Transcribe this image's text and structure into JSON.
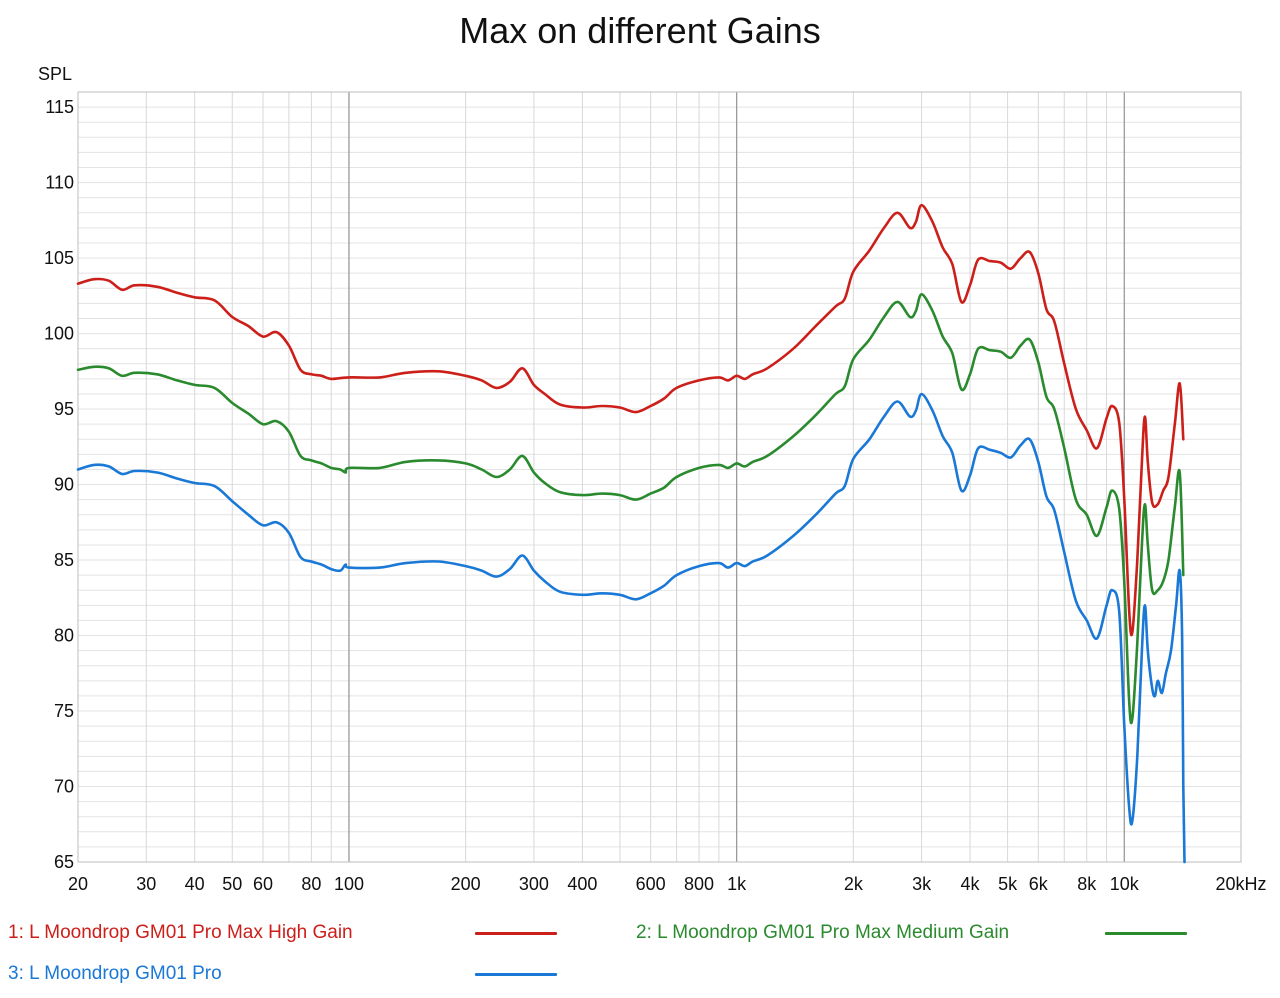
{
  "chart_data": {
    "type": "line",
    "title": "Max on different Gains",
    "ylabel": "SPL",
    "xlabel": "",
    "xscale": "log",
    "xlim": [
      20,
      20000
    ],
    "ylim": [
      65,
      116
    ],
    "yticks": [
      {
        "value": 65,
        "label": "65"
      },
      {
        "value": 70,
        "label": "70"
      },
      {
        "value": 75,
        "label": "75"
      },
      {
        "value": 80,
        "label": "80"
      },
      {
        "value": 85,
        "label": "85"
      },
      {
        "value": 90,
        "label": "90"
      },
      {
        "value": 95,
        "label": "95"
      },
      {
        "value": 100,
        "label": "100"
      },
      {
        "value": 105,
        "label": "105"
      },
      {
        "value": 110,
        "label": "110"
      },
      {
        "value": 115,
        "label": "115"
      }
    ],
    "xticks": [
      {
        "value": 20,
        "label": "20"
      },
      {
        "value": 30,
        "label": "30"
      },
      {
        "value": 40,
        "label": "40"
      },
      {
        "value": 50,
        "label": "50"
      },
      {
        "value": 60,
        "label": "60"
      },
      {
        "value": 80,
        "label": "80"
      },
      {
        "value": 100,
        "label": "100"
      },
      {
        "value": 200,
        "label": "200"
      },
      {
        "value": 300,
        "label": "300"
      },
      {
        "value": 400,
        "label": "400"
      },
      {
        "value": 600,
        "label": "600"
      },
      {
        "value": 800,
        "label": "800"
      },
      {
        "value": 1000,
        "label": "1k"
      },
      {
        "value": 2000,
        "label": "2k"
      },
      {
        "value": 3000,
        "label": "3k"
      },
      {
        "value": 4000,
        "label": "4k"
      },
      {
        "value": 5000,
        "label": "5k"
      },
      {
        "value": 6000,
        "label": "6k"
      },
      {
        "value": 8000,
        "label": "8k"
      },
      {
        "value": 10000,
        "label": "10k"
      },
      {
        "value": 20000,
        "label": "20kHz"
      }
    ],
    "grid": true,
    "legend": "bottom",
    "series": [
      {
        "name": "1: L Moondrop GM01 Pro Max High Gain",
        "color": "#cc1f1a",
        "points": [
          [
            20,
            103.3
          ],
          [
            22,
            103.6
          ],
          [
            24,
            103.5
          ],
          [
            26,
            102.9
          ],
          [
            28,
            103.2
          ],
          [
            32,
            103.1
          ],
          [
            36,
            102.7
          ],
          [
            40,
            102.4
          ],
          [
            45,
            102.2
          ],
          [
            50,
            101.1
          ],
          [
            55,
            100.5
          ],
          [
            60,
            99.8
          ],
          [
            65,
            100.1
          ],
          [
            70,
            99.2
          ],
          [
            75,
            97.6
          ],
          [
            80,
            97.3
          ],
          [
            85,
            97.2
          ],
          [
            90,
            97.0
          ],
          [
            100,
            97.1
          ],
          [
            120,
            97.1
          ],
          [
            140,
            97.4
          ],
          [
            170,
            97.5
          ],
          [
            200,
            97.2
          ],
          [
            220,
            96.9
          ],
          [
            240,
            96.4
          ],
          [
            260,
            96.8
          ],
          [
            280,
            97.7
          ],
          [
            300,
            96.6
          ],
          [
            320,
            96.0
          ],
          [
            350,
            95.3
          ],
          [
            400,
            95.1
          ],
          [
            450,
            95.2
          ],
          [
            500,
            95.1
          ],
          [
            550,
            94.8
          ],
          [
            600,
            95.2
          ],
          [
            650,
            95.7
          ],
          [
            700,
            96.4
          ],
          [
            800,
            96.9
          ],
          [
            900,
            97.1
          ],
          [
            950,
            96.9
          ],
          [
            1000,
            97.2
          ],
          [
            1050,
            97.0
          ],
          [
            1100,
            97.3
          ],
          [
            1200,
            97.7
          ],
          [
            1400,
            99.0
          ],
          [
            1600,
            100.5
          ],
          [
            1800,
            101.8
          ],
          [
            1900,
            102.3
          ],
          [
            2000,
            104.1
          ],
          [
            2200,
            105.5
          ],
          [
            2400,
            107.0
          ],
          [
            2600,
            108.0
          ],
          [
            2800,
            107.0
          ],
          [
            2900,
            107.4
          ],
          [
            3000,
            108.5
          ],
          [
            3200,
            107.4
          ],
          [
            3400,
            105.7
          ],
          [
            3600,
            104.6
          ],
          [
            3800,
            102.1
          ],
          [
            4000,
            103.2
          ],
          [
            4200,
            104.9
          ],
          [
            4500,
            104.8
          ],
          [
            4800,
            104.7
          ],
          [
            5100,
            104.3
          ],
          [
            5400,
            105.0
          ],
          [
            5700,
            105.4
          ],
          [
            6000,
            104.0
          ],
          [
            6300,
            101.6
          ],
          [
            6600,
            100.8
          ],
          [
            7000,
            98.0
          ],
          [
            7500,
            95.0
          ],
          [
            8000,
            93.6
          ],
          [
            8500,
            92.4
          ],
          [
            9000,
            94.4
          ],
          [
            9300,
            95.2
          ],
          [
            9700,
            94.1
          ],
          [
            10000,
            89.0
          ],
          [
            10300,
            81.5
          ],
          [
            10500,
            80.3
          ],
          [
            10800,
            85.0
          ],
          [
            11100,
            91.5
          ],
          [
            11300,
            94.5
          ],
          [
            11500,
            91.5
          ],
          [
            11800,
            88.8
          ],
          [
            12200,
            88.7
          ],
          [
            12600,
            89.6
          ],
          [
            13000,
            90.5
          ],
          [
            13500,
            94.0
          ],
          [
            13900,
            96.7
          ],
          [
            14200,
            93.0
          ]
        ]
      },
      {
        "name": "2: L Moondrop GM01 Pro Max Medium Gain",
        "color": "#2a8a2e",
        "points": [
          [
            20,
            97.6
          ],
          [
            22,
            97.8
          ],
          [
            24,
            97.7
          ],
          [
            26,
            97.2
          ],
          [
            28,
            97.4
          ],
          [
            32,
            97.3
          ],
          [
            36,
            96.9
          ],
          [
            40,
            96.6
          ],
          [
            45,
            96.4
          ],
          [
            50,
            95.4
          ],
          [
            55,
            94.7
          ],
          [
            60,
            94.0
          ],
          [
            65,
            94.2
          ],
          [
            70,
            93.5
          ],
          [
            75,
            91.9
          ],
          [
            80,
            91.6
          ],
          [
            85,
            91.4
          ],
          [
            90,
            91.1
          ],
          [
            95,
            91.0
          ],
          [
            98,
            90.8
          ],
          [
            100,
            91.1
          ],
          [
            120,
            91.1
          ],
          [
            140,
            91.5
          ],
          [
            170,
            91.6
          ],
          [
            200,
            91.4
          ],
          [
            220,
            91.0
          ],
          [
            240,
            90.5
          ],
          [
            260,
            91.0
          ],
          [
            280,
            91.9
          ],
          [
            300,
            90.8
          ],
          [
            320,
            90.1
          ],
          [
            350,
            89.5
          ],
          [
            400,
            89.3
          ],
          [
            450,
            89.4
          ],
          [
            500,
            89.3
          ],
          [
            550,
            89.0
          ],
          [
            600,
            89.4
          ],
          [
            650,
            89.8
          ],
          [
            700,
            90.5
          ],
          [
            800,
            91.1
          ],
          [
            900,
            91.3
          ],
          [
            950,
            91.1
          ],
          [
            1000,
            91.4
          ],
          [
            1050,
            91.2
          ],
          [
            1100,
            91.5
          ],
          [
            1200,
            91.9
          ],
          [
            1400,
            93.2
          ],
          [
            1600,
            94.6
          ],
          [
            1800,
            96.0
          ],
          [
            1900,
            96.5
          ],
          [
            2000,
            98.3
          ],
          [
            2200,
            99.6
          ],
          [
            2400,
            101.1
          ],
          [
            2600,
            102.1
          ],
          [
            2800,
            101.1
          ],
          [
            2900,
            101.5
          ],
          [
            3000,
            102.6
          ],
          [
            3200,
            101.5
          ],
          [
            3400,
            99.8
          ],
          [
            3600,
            98.7
          ],
          [
            3800,
            96.3
          ],
          [
            4000,
            97.3
          ],
          [
            4200,
            99.0
          ],
          [
            4500,
            98.9
          ],
          [
            4800,
            98.8
          ],
          [
            5100,
            98.4
          ],
          [
            5400,
            99.2
          ],
          [
            5700,
            99.6
          ],
          [
            6000,
            98.1
          ],
          [
            6300,
            95.8
          ],
          [
            6600,
            95.0
          ],
          [
            7000,
            92.4
          ],
          [
            7500,
            89.0
          ],
          [
            8000,
            88.0
          ],
          [
            8500,
            86.6
          ],
          [
            9000,
            88.5
          ],
          [
            9300,
            89.6
          ],
          [
            9700,
            88.4
          ],
          [
            10000,
            83.5
          ],
          [
            10300,
            75.5
          ],
          [
            10500,
            74.6
          ],
          [
            10800,
            79.5
          ],
          [
            11100,
            86.0
          ],
          [
            11300,
            88.7
          ],
          [
            11500,
            86.0
          ],
          [
            11800,
            83.0
          ],
          [
            12200,
            83.0
          ],
          [
            12600,
            83.6
          ],
          [
            13000,
            85.0
          ],
          [
            13500,
            88.5
          ],
          [
            13900,
            90.8
          ],
          [
            14200,
            84.0
          ]
        ]
      },
      {
        "name": "3: L Moondrop GM01 Pro",
        "color": "#1a78d6",
        "points": [
          [
            20,
            91.0
          ],
          [
            22,
            91.3
          ],
          [
            24,
            91.2
          ],
          [
            26,
            90.7
          ],
          [
            28,
            90.9
          ],
          [
            32,
            90.8
          ],
          [
            36,
            90.4
          ],
          [
            40,
            90.1
          ],
          [
            45,
            89.9
          ],
          [
            50,
            88.9
          ],
          [
            55,
            88.0
          ],
          [
            60,
            87.3
          ],
          [
            65,
            87.5
          ],
          [
            70,
            86.8
          ],
          [
            75,
            85.2
          ],
          [
            80,
            84.9
          ],
          [
            85,
            84.7
          ],
          [
            90,
            84.4
          ],
          [
            95,
            84.3
          ],
          [
            98,
            84.7
          ],
          [
            100,
            84.5
          ],
          [
            120,
            84.5
          ],
          [
            140,
            84.8
          ],
          [
            170,
            84.9
          ],
          [
            200,
            84.6
          ],
          [
            220,
            84.3
          ],
          [
            240,
            83.9
          ],
          [
            260,
            84.4
          ],
          [
            280,
            85.3
          ],
          [
            300,
            84.3
          ],
          [
            320,
            83.6
          ],
          [
            350,
            82.9
          ],
          [
            400,
            82.7
          ],
          [
            450,
            82.8
          ],
          [
            500,
            82.7
          ],
          [
            550,
            82.4
          ],
          [
            600,
            82.8
          ],
          [
            650,
            83.3
          ],
          [
            700,
            84.0
          ],
          [
            800,
            84.6
          ],
          [
            900,
            84.8
          ],
          [
            950,
            84.5
          ],
          [
            1000,
            84.8
          ],
          [
            1050,
            84.6
          ],
          [
            1100,
            84.9
          ],
          [
            1200,
            85.3
          ],
          [
            1400,
            86.6
          ],
          [
            1600,
            88.0
          ],
          [
            1800,
            89.4
          ],
          [
            1900,
            89.9
          ],
          [
            2000,
            91.7
          ],
          [
            2200,
            93.0
          ],
          [
            2400,
            94.5
          ],
          [
            2600,
            95.5
          ],
          [
            2800,
            94.5
          ],
          [
            2900,
            94.9
          ],
          [
            3000,
            96.0
          ],
          [
            3200,
            94.9
          ],
          [
            3400,
            93.2
          ],
          [
            3600,
            92.1
          ],
          [
            3800,
            89.6
          ],
          [
            4000,
            90.6
          ],
          [
            4200,
            92.4
          ],
          [
            4500,
            92.3
          ],
          [
            4800,
            92.1
          ],
          [
            5100,
            91.8
          ],
          [
            5400,
            92.6
          ],
          [
            5700,
            93.0
          ],
          [
            6000,
            91.5
          ],
          [
            6300,
            89.2
          ],
          [
            6600,
            88.3
          ],
          [
            7000,
            85.5
          ],
          [
            7500,
            82.3
          ],
          [
            8000,
            81.0
          ],
          [
            8500,
            79.8
          ],
          [
            9000,
            82.0
          ],
          [
            9300,
            83.0
          ],
          [
            9700,
            81.6
          ],
          [
            10000,
            74.0
          ],
          [
            10300,
            68.5
          ],
          [
            10500,
            67.8
          ],
          [
            10800,
            72.0
          ],
          [
            11100,
            79.0
          ],
          [
            11300,
            82.0
          ],
          [
            11500,
            79.0
          ],
          [
            11800,
            76.5
          ],
          [
            12000,
            76.0
          ],
          [
            12200,
            77.0
          ],
          [
            12500,
            76.2
          ],
          [
            12800,
            77.5
          ],
          [
            13200,
            79.0
          ],
          [
            13600,
            82.0
          ],
          [
            13900,
            84.3
          ],
          [
            14100,
            80.0
          ],
          [
            14200,
            70.0
          ],
          [
            14300,
            65.0
          ]
        ]
      }
    ]
  }
}
